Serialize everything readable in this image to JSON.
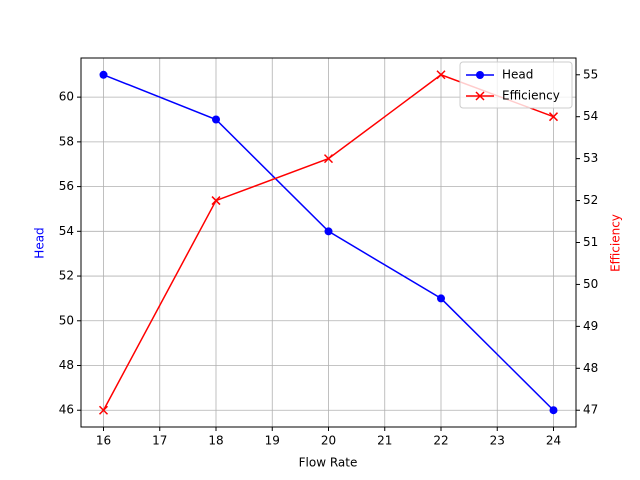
{
  "chart_data": {
    "type": "line",
    "x": [
      16,
      18,
      20,
      22,
      24
    ],
    "xlabel": "Flow Rate",
    "ylabel": "Head",
    "y2label": "Efficiency",
    "xlim": [
      15.6,
      24.4
    ],
    "xticks": [
      16,
      17,
      18,
      19,
      20,
      21,
      22,
      23,
      24
    ],
    "ylim": [
      45.25,
      61.75
    ],
    "yticks": [
      46,
      48,
      50,
      52,
      54,
      56,
      58,
      60
    ],
    "y2lim": [
      46.6,
      55.4
    ],
    "y2ticks": [
      47,
      48,
      49,
      50,
      51,
      52,
      53,
      54,
      55
    ],
    "grid": true,
    "legend": "upper right",
    "series": [
      {
        "name": "Head",
        "color": "#0000ff",
        "marker": "o",
        "values": [
          61,
          59,
          54,
          51,
          46
        ]
      },
      {
        "name": "Efficiency",
        "color": "#ff0000",
        "marker": "x",
        "axis": "y2",
        "values": [
          47,
          52,
          53,
          55,
          54
        ]
      }
    ]
  }
}
